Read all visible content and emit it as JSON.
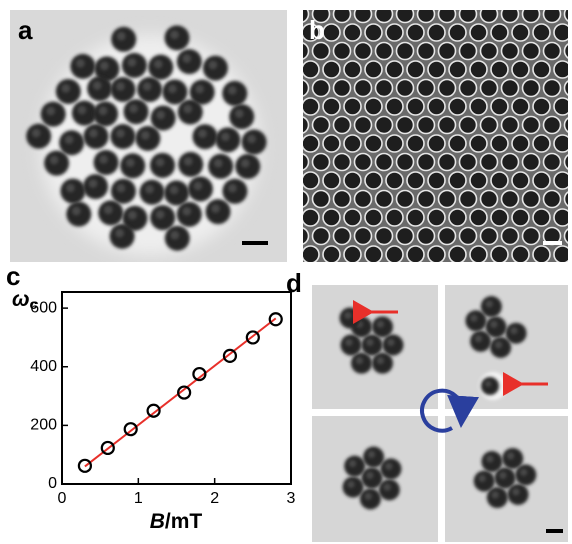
{
  "panels": [
    {
      "label": "a"
    },
    {
      "label": "b"
    },
    {
      "label": "c"
    },
    {
      "label": "d"
    }
  ],
  "chart_data": {
    "type": "scatter",
    "x": [
      0.3,
      0.6,
      0.9,
      1.2,
      1.6,
      1.8,
      2.2,
      2.5,
      2.8
    ],
    "series": [
      {
        "values": [
          62,
          123,
          187,
          250,
          312,
          375,
          437,
          500,
          562
        ],
        "color": "#000000"
      }
    ],
    "fit": {
      "x": [
        0.3,
        2.8
      ],
      "values": [
        60,
        565
      ],
      "color": "#e8302a"
    },
    "xlim": [
      0,
      3
    ],
    "ylim": [
      0,
      655
    ],
    "xticks": [
      0,
      1,
      2,
      3
    ],
    "yticks": [
      0,
      200,
      400,
      600
    ],
    "x_label": "B",
    "x_label_unit": "/mT",
    "y_label": "ω",
    "y_label_subscript": "c"
  }
}
